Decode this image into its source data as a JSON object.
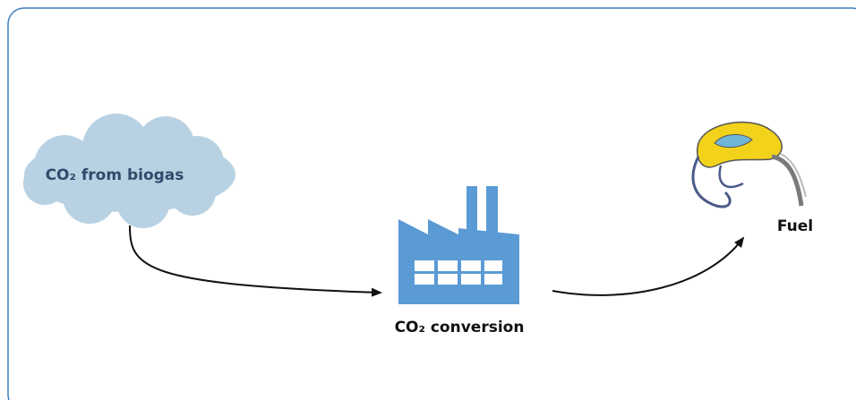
{
  "nodes": [
    {
      "label": "CO₂ from biogas"
    },
    {
      "label": "CO₂ conversion"
    },
    {
      "label": "Fuel"
    }
  ]
}
